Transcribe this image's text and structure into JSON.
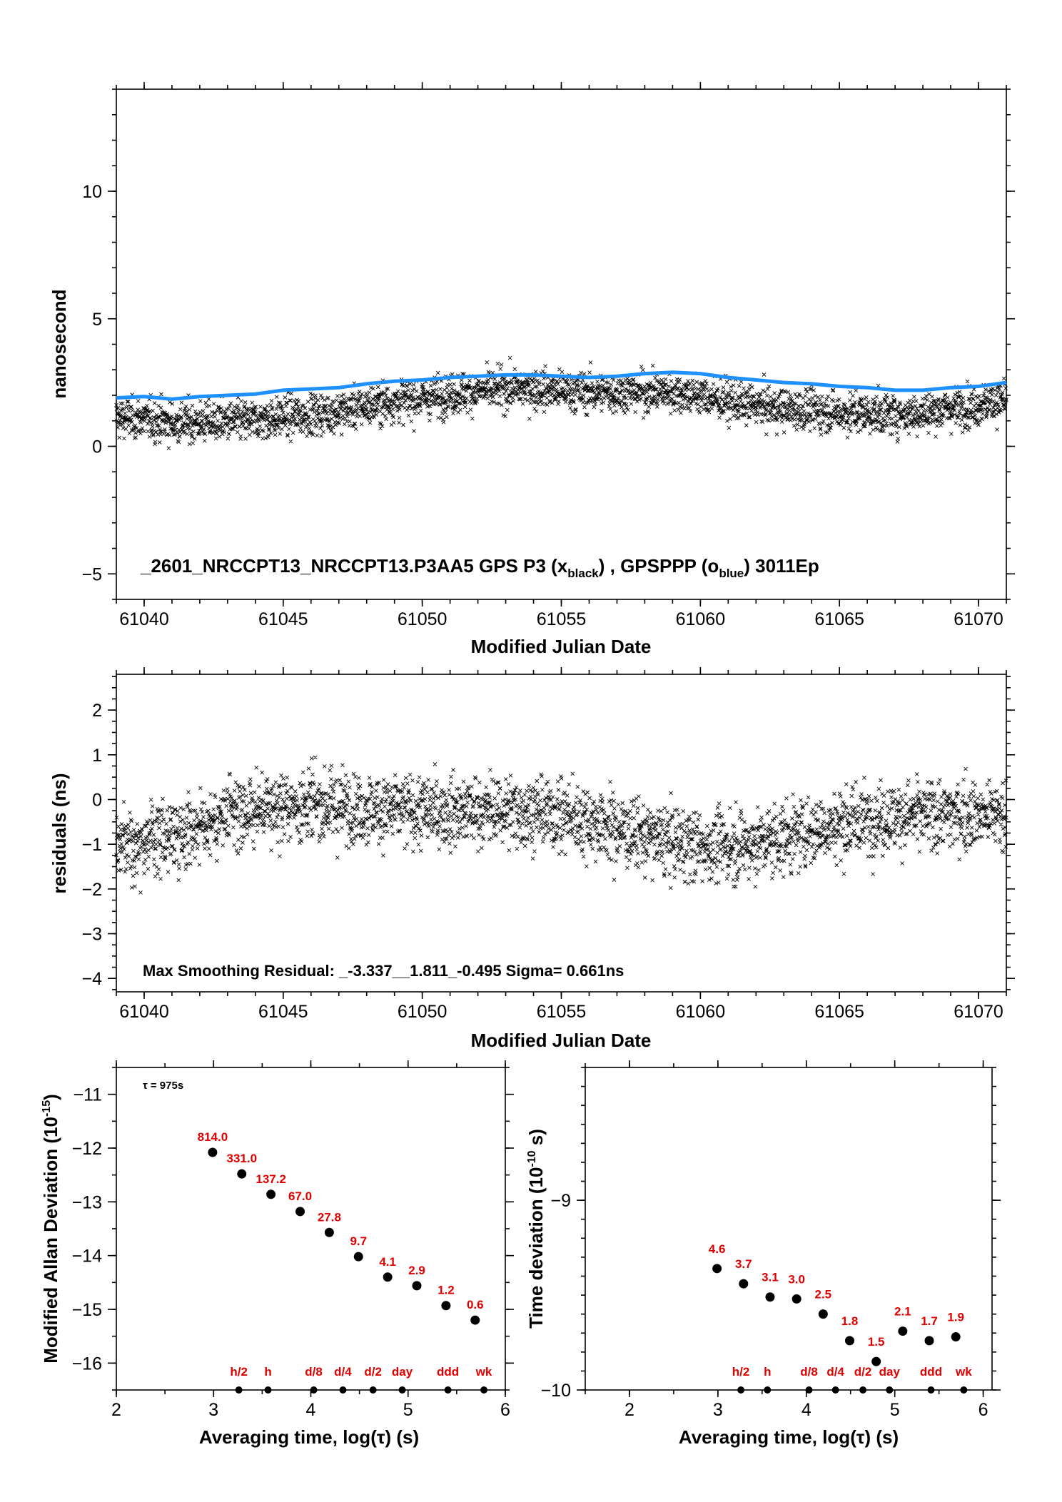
{
  "chart_data": [
    {
      "type": "scatter",
      "xlabel": "Modified Julian Date",
      "ylabel": "nanosecond",
      "xlim": [
        61039.0,
        61071.0
      ],
      "ylim": [
        -6.0,
        14.0
      ],
      "xticks": [
        "61040",
        "61045",
        "61050",
        "61055",
        "61060",
        "61065",
        "61070"
      ],
      "yticks": [
        "−5",
        "0",
        "5",
        "10"
      ],
      "annotation": {
        "prefix": "_2601_NRCCPT13_NRCCPT13.P3AA5     GPS P3 (x",
        "sub1": "black",
        "mid": ") ,  GPSPPP (o",
        "sub2": "blue",
        "suffix": ")  3011Ep"
      },
      "series": [
        {
          "marker": "x",
          "color": "#000000",
          "n_points": 2976,
          "trend_note": "noisy about the blue curve, spread ±1 ns"
        },
        {
          "marker": "line",
          "color": "#1e90ff",
          "x": [
            61039,
            61040,
            61041,
            61042,
            61043,
            61044,
            61045,
            61046,
            61047,
            61048,
            61049,
            61050,
            61051,
            61052,
            61053,
            61054,
            61055,
            61056,
            61057,
            61058,
            61059,
            61060,
            61061,
            61062,
            61063,
            61064,
            61065,
            61066,
            61067,
            61068,
            61069,
            61070,
            61071
          ],
          "y": [
            1.9,
            1.95,
            1.85,
            1.95,
            2.0,
            2.05,
            2.2,
            2.25,
            2.3,
            2.45,
            2.55,
            2.6,
            2.7,
            2.75,
            2.8,
            2.8,
            2.75,
            2.7,
            2.75,
            2.85,
            2.9,
            2.85,
            2.7,
            2.6,
            2.5,
            2.45,
            2.35,
            2.3,
            2.2,
            2.2,
            2.3,
            2.35,
            2.5
          ]
        }
      ]
    },
    {
      "type": "scatter",
      "xlabel": "Modified Julian Date",
      "ylabel": "residuals (ns)",
      "xlim": [
        61039.0,
        61071.0
      ],
      "ylim": [
        -4.3,
        2.8
      ],
      "xticks": [
        "61040",
        "61045",
        "61050",
        "61055",
        "61060",
        "61065",
        "61070"
      ],
      "yticks": [
        "−4",
        "−3",
        "−2",
        "−1",
        "0",
        "1",
        "2"
      ],
      "annotation": "Max Smoothing Residual: _-3.337__1.811_-0.495  Sigma= 0.661ns",
      "series": [
        {
          "marker": "x",
          "color": "#000000",
          "n_points": 2976
        }
      ]
    },
    {
      "type": "scatter",
      "xlabel": "Averaging time, log(τ) (s)",
      "ylabel_main": "Modified Allan Deviation (10",
      "ylabel_exp": "-15",
      "ylabel_end": ")",
      "xlim": [
        2,
        6
      ],
      "ylim": [
        -16.5,
        -10.5
      ],
      "xticks": [
        "2",
        "3",
        "4",
        "5",
        "6"
      ],
      "yticks": [
        "−16",
        "−15",
        "−14",
        "−13",
        "−12",
        "−11"
      ],
      "tau_note": "τ = 975s",
      "points": [
        {
          "x": 2.99,
          "y": -12.08,
          "label": "814.0"
        },
        {
          "x": 3.29,
          "y": -12.48,
          "label": "331.0"
        },
        {
          "x": 3.59,
          "y": -12.86,
          "label": "137.2"
        },
        {
          "x": 3.89,
          "y": -13.18,
          "label": "67.0"
        },
        {
          "x": 4.19,
          "y": -13.57,
          "label": "27.8"
        },
        {
          "x": 4.49,
          "y": -14.02,
          "label": "9.7"
        },
        {
          "x": 4.79,
          "y": -14.4,
          "label": "4.1"
        },
        {
          "x": 5.09,
          "y": -14.56,
          "label": "2.9"
        },
        {
          "x": 5.39,
          "y": -14.93,
          "label": "1.2"
        },
        {
          "x": 5.69,
          "y": -15.2,
          "label": "0.6"
        }
      ],
      "time_markers": [
        {
          "x": 3.26,
          "label": "h/2"
        },
        {
          "x": 3.56,
          "label": "h"
        },
        {
          "x": 4.03,
          "label": "d/8"
        },
        {
          "x": 4.33,
          "label": "d/4"
        },
        {
          "x": 4.64,
          "label": "d/2"
        },
        {
          "x": 4.94,
          "label": "day"
        },
        {
          "x": 5.41,
          "label": "ddd"
        },
        {
          "x": 5.78,
          "label": "wk"
        }
      ]
    },
    {
      "type": "scatter",
      "xlabel": "Averaging time, log(τ) (s)",
      "ylabel_main": "Time deviation (10",
      "ylabel_exp": "-10",
      "ylabel_end": " s)",
      "xlim": [
        1.5,
        6.1
      ],
      "ylim": [
        -10.0,
        -8.3
      ],
      "xticks": [
        "2",
        "3",
        "4",
        "5",
        "6"
      ],
      "yticks": [
        "−10",
        "−9"
      ],
      "points": [
        {
          "x": 2.99,
          "y": -9.36,
          "label": "4.6"
        },
        {
          "x": 3.29,
          "y": -9.44,
          "label": "3.7"
        },
        {
          "x": 3.59,
          "y": -9.51,
          "label": "3.1"
        },
        {
          "x": 3.89,
          "y": -9.52,
          "label": "3.0"
        },
        {
          "x": 4.19,
          "y": -9.6,
          "label": "2.5"
        },
        {
          "x": 4.49,
          "y": -9.74,
          "label": "1.8"
        },
        {
          "x": 4.79,
          "y": -9.85,
          "label": "1.5"
        },
        {
          "x": 5.09,
          "y": -9.69,
          "label": "2.1"
        },
        {
          "x": 5.39,
          "y": -9.74,
          "label": "1.7"
        },
        {
          "x": 5.69,
          "y": -9.72,
          "label": "1.9"
        }
      ],
      "time_markers": [
        {
          "x": 3.26,
          "label": "h/2"
        },
        {
          "x": 3.56,
          "label": "h"
        },
        {
          "x": 4.03,
          "label": "d/8"
        },
        {
          "x": 4.33,
          "label": "d/4"
        },
        {
          "x": 4.64,
          "label": "d/2"
        },
        {
          "x": 4.94,
          "label": "day"
        },
        {
          "x": 5.41,
          "label": "ddd"
        },
        {
          "x": 5.78,
          "label": "wk"
        }
      ]
    }
  ]
}
